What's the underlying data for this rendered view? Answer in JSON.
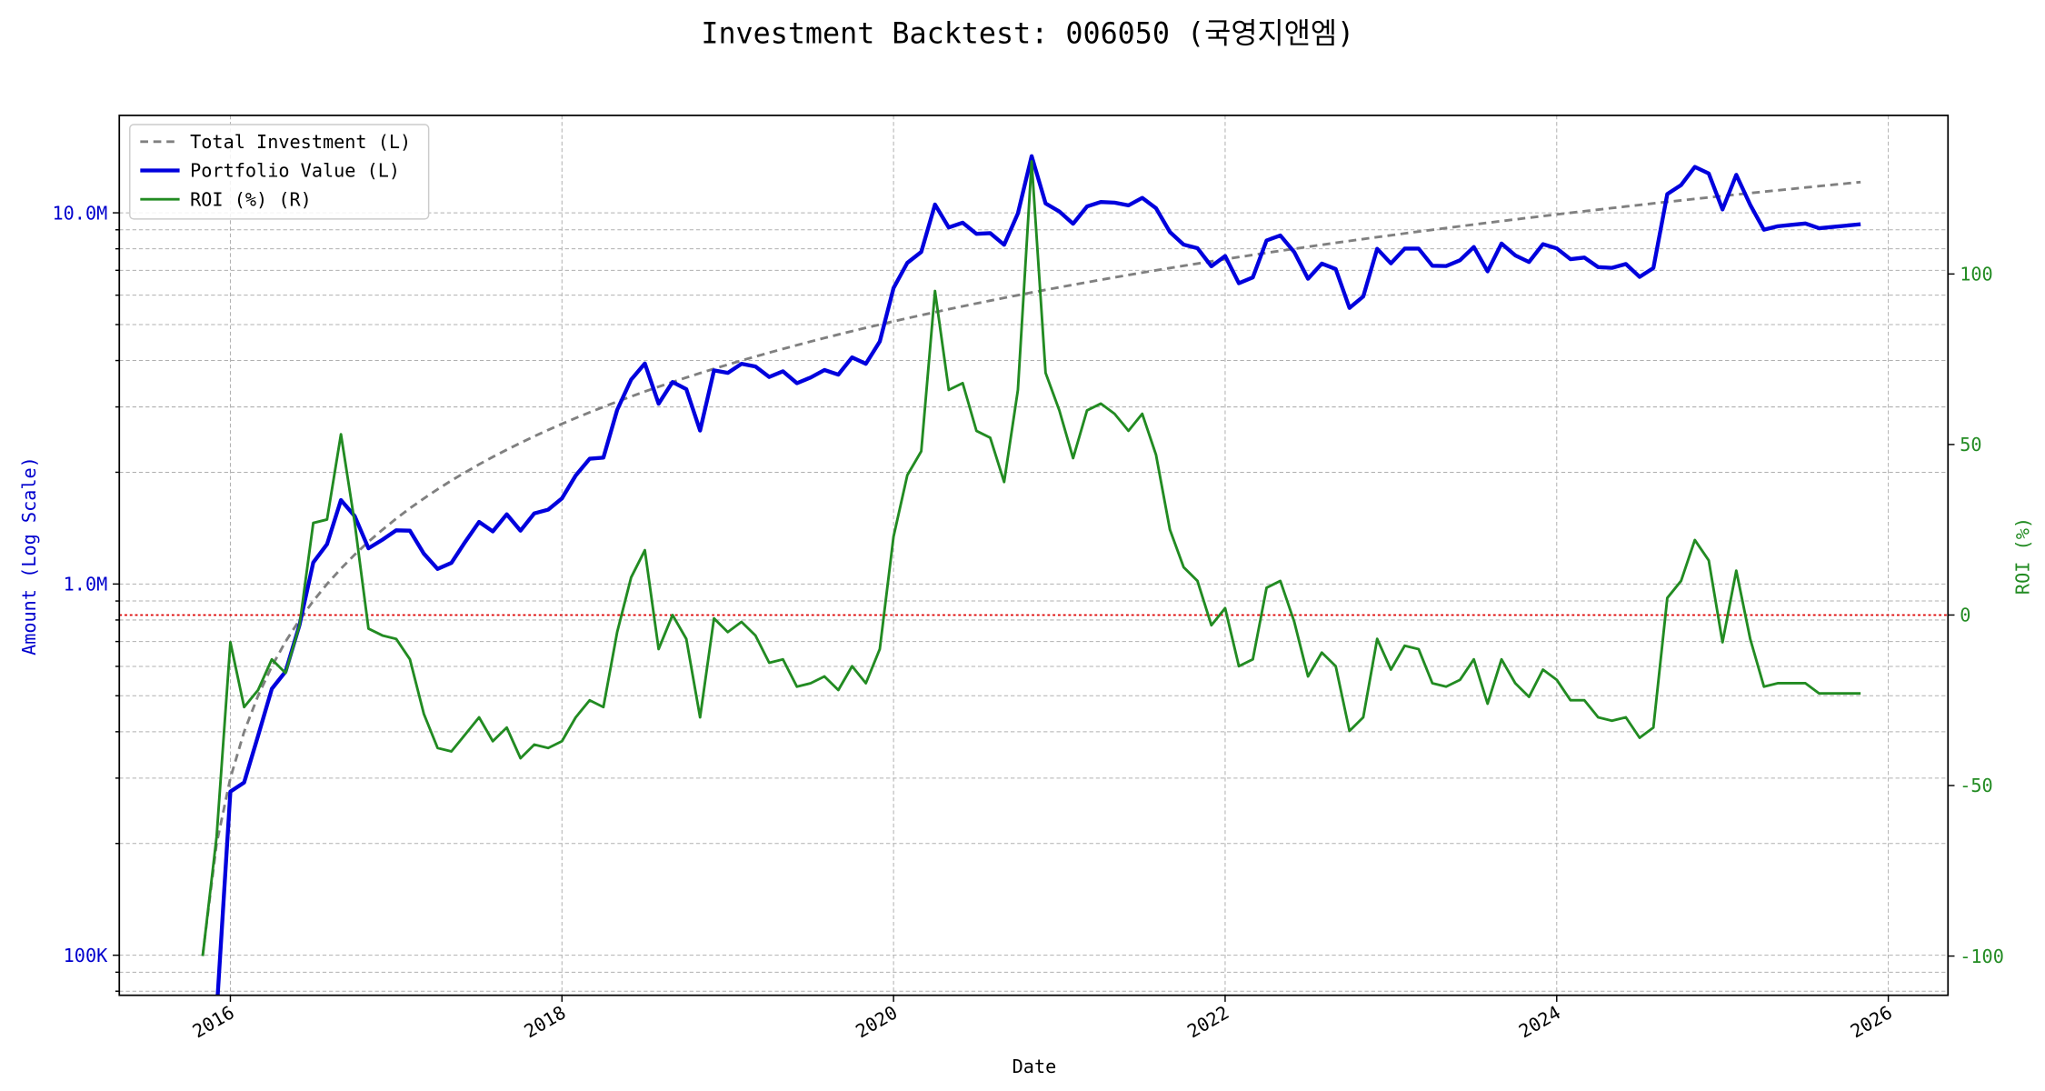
{
  "chart_data": {
    "type": "line",
    "title": "Investment Backtest: 006050 (국영지앤엠)",
    "xlabel": "Date",
    "ylabel": "Amount (Log Scale)",
    "y2label": "ROI (%)",
    "yscale": "log",
    "grid": true,
    "legend": "upper left",
    "ylabel_color": "#0000cd",
    "y2label_color": "#228b22",
    "y2_refline": 0,
    "y2_refline_color": "#dd0000",
    "xlim": [
      2015.33,
      2026.36
    ],
    "xticks": [
      2016,
      2018,
      2020,
      2022,
      2024,
      2026
    ],
    "ylim": [
      78000,
      18300000
    ],
    "yticks": [
      {
        "value": 100000,
        "label": "100K"
      },
      {
        "value": 1000000,
        "label": "1.0M"
      },
      {
        "value": 10000000,
        "label": "10.0M"
      }
    ],
    "yminorticks": [
      80000,
      90000,
      200000,
      300000,
      400000,
      500000,
      600000,
      700000,
      800000,
      900000,
      2000000,
      3000000,
      4000000,
      5000000,
      6000000,
      7000000,
      8000000,
      9000000
    ],
    "y2lim": [
      -111.5,
      146.5
    ],
    "y2ticks": [
      -100,
      -50,
      0,
      50,
      100
    ],
    "x": [
      2015.833,
      2015.917,
      2016.0,
      2016.083,
      2016.167,
      2016.25,
      2016.333,
      2016.417,
      2016.5,
      2016.583,
      2016.667,
      2016.75,
      2016.833,
      2016.917,
      2017.0,
      2017.083,
      2017.167,
      2017.25,
      2017.333,
      2017.417,
      2017.5,
      2017.583,
      2017.667,
      2017.75,
      2017.833,
      2017.917,
      2018.0,
      2018.083,
      2018.167,
      2018.25,
      2018.333,
      2018.417,
      2018.5,
      2018.583,
      2018.667,
      2018.75,
      2018.833,
      2018.917,
      2019.0,
      2019.083,
      2019.167,
      2019.25,
      2019.333,
      2019.417,
      2019.5,
      2019.583,
      2019.667,
      2019.75,
      2019.833,
      2019.917,
      2020.0,
      2020.083,
      2020.167,
      2020.25,
      2020.333,
      2020.417,
      2020.5,
      2020.583,
      2020.667,
      2020.75,
      2020.833,
      2020.917,
      2021.0,
      2021.083,
      2021.167,
      2021.25,
      2021.333,
      2021.417,
      2021.5,
      2021.583,
      2021.667,
      2021.75,
      2021.833,
      2021.917,
      2022.0,
      2022.083,
      2022.167,
      2022.25,
      2022.333,
      2022.417,
      2022.5,
      2022.583,
      2022.667,
      2022.75,
      2022.833,
      2022.917,
      2023.0,
      2023.083,
      2023.167,
      2023.25,
      2023.333,
      2023.417,
      2023.5,
      2023.583,
      2023.667,
      2023.75,
      2023.833,
      2023.917,
      2024.0,
      2024.083,
      2024.167,
      2024.25,
      2024.333,
      2024.417,
      2024.5,
      2024.583,
      2024.667,
      2024.75,
      2024.833,
      2024.917,
      2025.0,
      2025.083,
      2025.167,
      2025.25,
      2025.333,
      2025.417,
      2025.5,
      2025.583,
      2025.667,
      2025.75,
      2025.833
    ],
    "series": [
      {
        "name": "Total Investment (L)",
        "color": "#808080",
        "dash": true,
        "width": 2,
        "values": [
          100000,
          200000,
          300000,
          400000,
          500000,
          600000,
          700000,
          800000,
          900000,
          1000000,
          1100000,
          1200000,
          1300000,
          1400000,
          1500000,
          1600000,
          1700000,
          1800000,
          1900000,
          2000000,
          2100000,
          2200000,
          2300000,
          2400000,
          2500000,
          2600000,
          2700000,
          2800000,
          2900000,
          3000000,
          3100000,
          3200000,
          3300000,
          3400000,
          3500000,
          3600000,
          3700000,
          3800000,
          3900000,
          4000000,
          4100000,
          4200000,
          4300000,
          4400000,
          4500000,
          4600000,
          4700000,
          4800000,
          4900000,
          5000000,
          5100000,
          5200000,
          5300000,
          5400000,
          5500000,
          5600000,
          5700000,
          5800000,
          5900000,
          6000000,
          6100000,
          6200000,
          6300000,
          6400000,
          6500000,
          6600000,
          6700000,
          6800000,
          6900000,
          7000000,
          7100000,
          7200000,
          7300000,
          7400000,
          7500000,
          7600000,
          7700000,
          7800000,
          7900000,
          8000000,
          8100000,
          8200000,
          8300000,
          8400000,
          8500000,
          8600000,
          8700000,
          8800000,
          8900000,
          9000000,
          9100000,
          9200000,
          9300000,
          9400000,
          9500000,
          9600000,
          9700000,
          9800000,
          9900000,
          10000000,
          10100000,
          10200000,
          10300000,
          10400000,
          10500000,
          10600000,
          10700000,
          10800000,
          10900000,
          11000000,
          11100000,
          11200000,
          11300000,
          11400000,
          11500000,
          11600000,
          11700000,
          11800000,
          11900000,
          12000000,
          12100000
        ]
      },
      {
        "name": "Portfolio Value (L)",
        "color": "#0000dd",
        "width": 3,
        "values": [
          null,
          70000,
          276000,
          292000,
          390000,
          522000,
          581000,
          776000,
          1143000,
          1280000,
          1683000,
          1524000,
          1248000,
          1316000,
          1395000,
          1392000,
          1207000,
          1098000,
          1140000,
          1300000,
          1470000,
          1386000,
          1541000,
          1392000,
          1550000,
          1586000,
          1701000,
          1960000,
          2175000,
          2190000,
          2945000,
          3552000,
          3927000,
          3060000,
          3500000,
          3348000,
          2590000,
          3762000,
          3705000,
          3920000,
          3854000,
          3612000,
          3741000,
          3476000,
          3600000,
          3772000,
          3666000,
          4080000,
          3920000,
          4500000,
          6273000,
          7332000,
          7844000,
          10530000,
          9130000,
          9408000,
          8778000,
          8816000,
          8201000,
          9960000,
          14213000,
          10602000,
          10080000,
          9344000,
          10400000,
          10692000,
          10653000,
          10472000,
          10971000,
          10290000,
          8875000,
          8208000,
          8030000,
          7178000,
          7650000,
          6460000,
          6699000,
          8424000,
          8690000,
          7840000,
          6642000,
          7298000,
          7055000,
          5544000,
          5950000,
          7998000,
          7308000,
          8008000,
          8010000,
          7200000,
          7189000,
          7452000,
          8091000,
          6956000,
          8265000,
          7680000,
          7372000,
          8232000,
          8019000,
          7500000,
          7575000,
          7140000,
          7107000,
          7280000,
          6720000,
          7102000,
          11235000,
          11880000,
          13298000,
          12760000,
          10212000,
          12656000,
          10509000,
          9006000,
          9200000,
          9280000,
          9360000,
          9086000,
          9163000,
          9240000,
          9317000
        ]
      },
      {
        "name": "ROI (%) (R)",
        "color": "#228b22",
        "width": 2,
        "axis": "y2",
        "values": [
          -100,
          -65,
          -8,
          -27,
          -22,
          -13,
          -17,
          -3,
          27,
          28,
          53,
          27,
          -4,
          -6,
          -7,
          -13,
          -29,
          -39,
          -40,
          -35,
          -30,
          -37,
          -33,
          -42,
          -38,
          -39,
          -37,
          -30,
          -25,
          -27,
          -5,
          11,
          19,
          -10,
          0,
          -7,
          -30,
          -1,
          -5,
          -2,
          -6,
          -14,
          -13,
          -21,
          -20,
          -18,
          -22,
          -15,
          -20,
          -10,
          23,
          41,
          48,
          95,
          66,
          68,
          54,
          52,
          39,
          66,
          133,
          71,
          60,
          46,
          60,
          62,
          59,
          54,
          59,
          47,
          25,
          14,
          10,
          -3,
          2,
          -15,
          -13,
          8,
          10,
          -2,
          -18,
          -11,
          -15,
          -34,
          -30,
          -7,
          -16,
          -9,
          -10,
          -20,
          -21,
          -19,
          -13,
          -26,
          -13,
          -20,
          -24,
          -16,
          -19,
          -25,
          -25,
          -30,
          -31,
          -30,
          -36,
          -33,
          5,
          10,
          22,
          16,
          -8,
          13,
          -7,
          -21,
          -20,
          -20,
          -20,
          -23,
          -23,
          -23,
          -23
        ]
      }
    ]
  }
}
